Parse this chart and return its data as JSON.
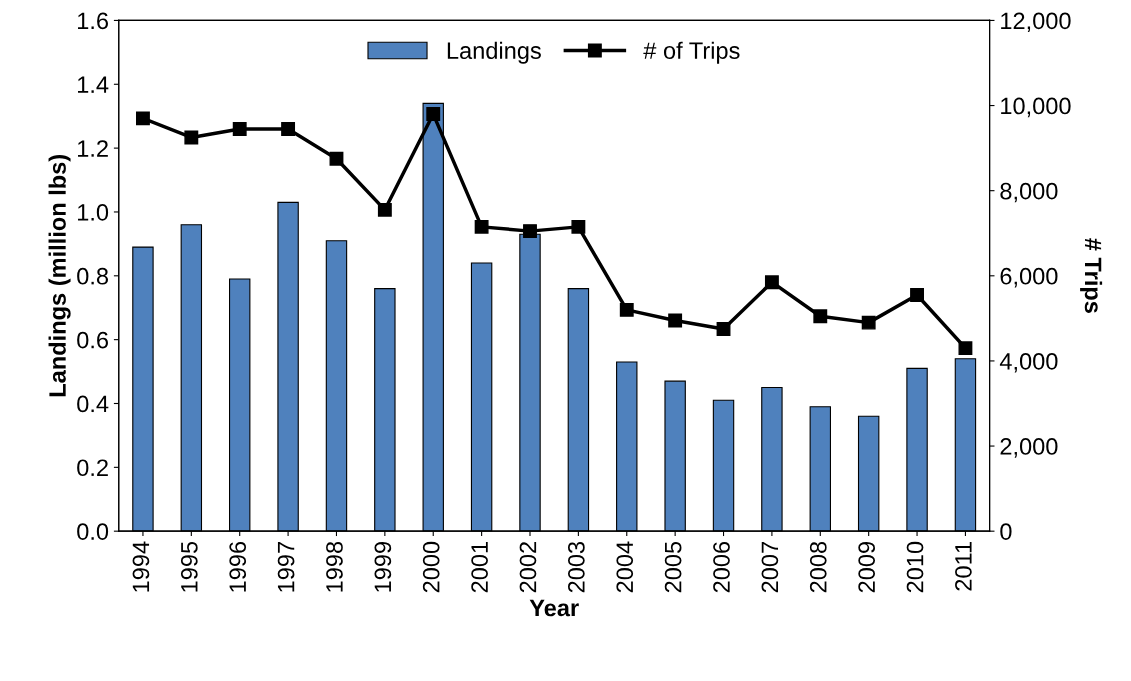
{
  "chart_data": {
    "type": "bar",
    "xlabel": "Year",
    "ylabel": "Landings (million lbs)",
    "y2label": "# Trips",
    "categories": [
      "1994",
      "1995",
      "1996",
      "1997",
      "1998",
      "1999",
      "2000",
      "2001",
      "2002",
      "2003",
      "2004",
      "2005",
      "2006",
      "2007",
      "2008",
      "2009",
      "2010",
      "2011"
    ],
    "series": [
      {
        "name": "Landings",
        "color": "#4f81bd",
        "values": [
          0.89,
          0.96,
          0.79,
          1.03,
          0.91,
          0.76,
          1.34,
          0.84,
          0.93,
          0.76,
          0.53,
          0.47,
          0.41,
          0.45,
          0.39,
          0.36,
          0.51,
          0.54
        ]
      },
      {
        "name": "# of Trips",
        "type": "line",
        "axis": "y2",
        "color": "#000000",
        "marker": "square",
        "values": [
          9700,
          9250,
          9450,
          9450,
          8750,
          7550,
          9800,
          7150,
          7050,
          7150,
          5200,
          4950,
          4750,
          5850,
          5050,
          4900,
          5550,
          4300
        ]
      }
    ],
    "ylim": [
      0,
      1.6
    ],
    "yticks": [
      {
        "value": 0,
        "label": "0.0"
      },
      {
        "value": 0.2,
        "label": "0.2"
      },
      {
        "value": 0.4,
        "label": "0.4"
      },
      {
        "value": 0.6,
        "label": "0.6"
      },
      {
        "value": 0.8,
        "label": "0.8"
      },
      {
        "value": 1.0,
        "label": "1.0"
      },
      {
        "value": 1.2,
        "label": "1.2"
      },
      {
        "value": 1.4,
        "label": "1.4"
      },
      {
        "value": 1.6,
        "label": "1.6"
      }
    ],
    "y2lim": [
      0,
      12000
    ],
    "y2ticks": [
      {
        "value": 0,
        "label": "0"
      },
      {
        "value": 2000,
        "label": "2,000"
      },
      {
        "value": 4000,
        "label": "4,000"
      },
      {
        "value": 6000,
        "label": "6,000"
      },
      {
        "value": 8000,
        "label": "8,000"
      },
      {
        "value": 10000,
        "label": "10,000"
      },
      {
        "value": 12000,
        "label": "12,000"
      }
    ],
    "grid": false,
    "legend": "top"
  }
}
